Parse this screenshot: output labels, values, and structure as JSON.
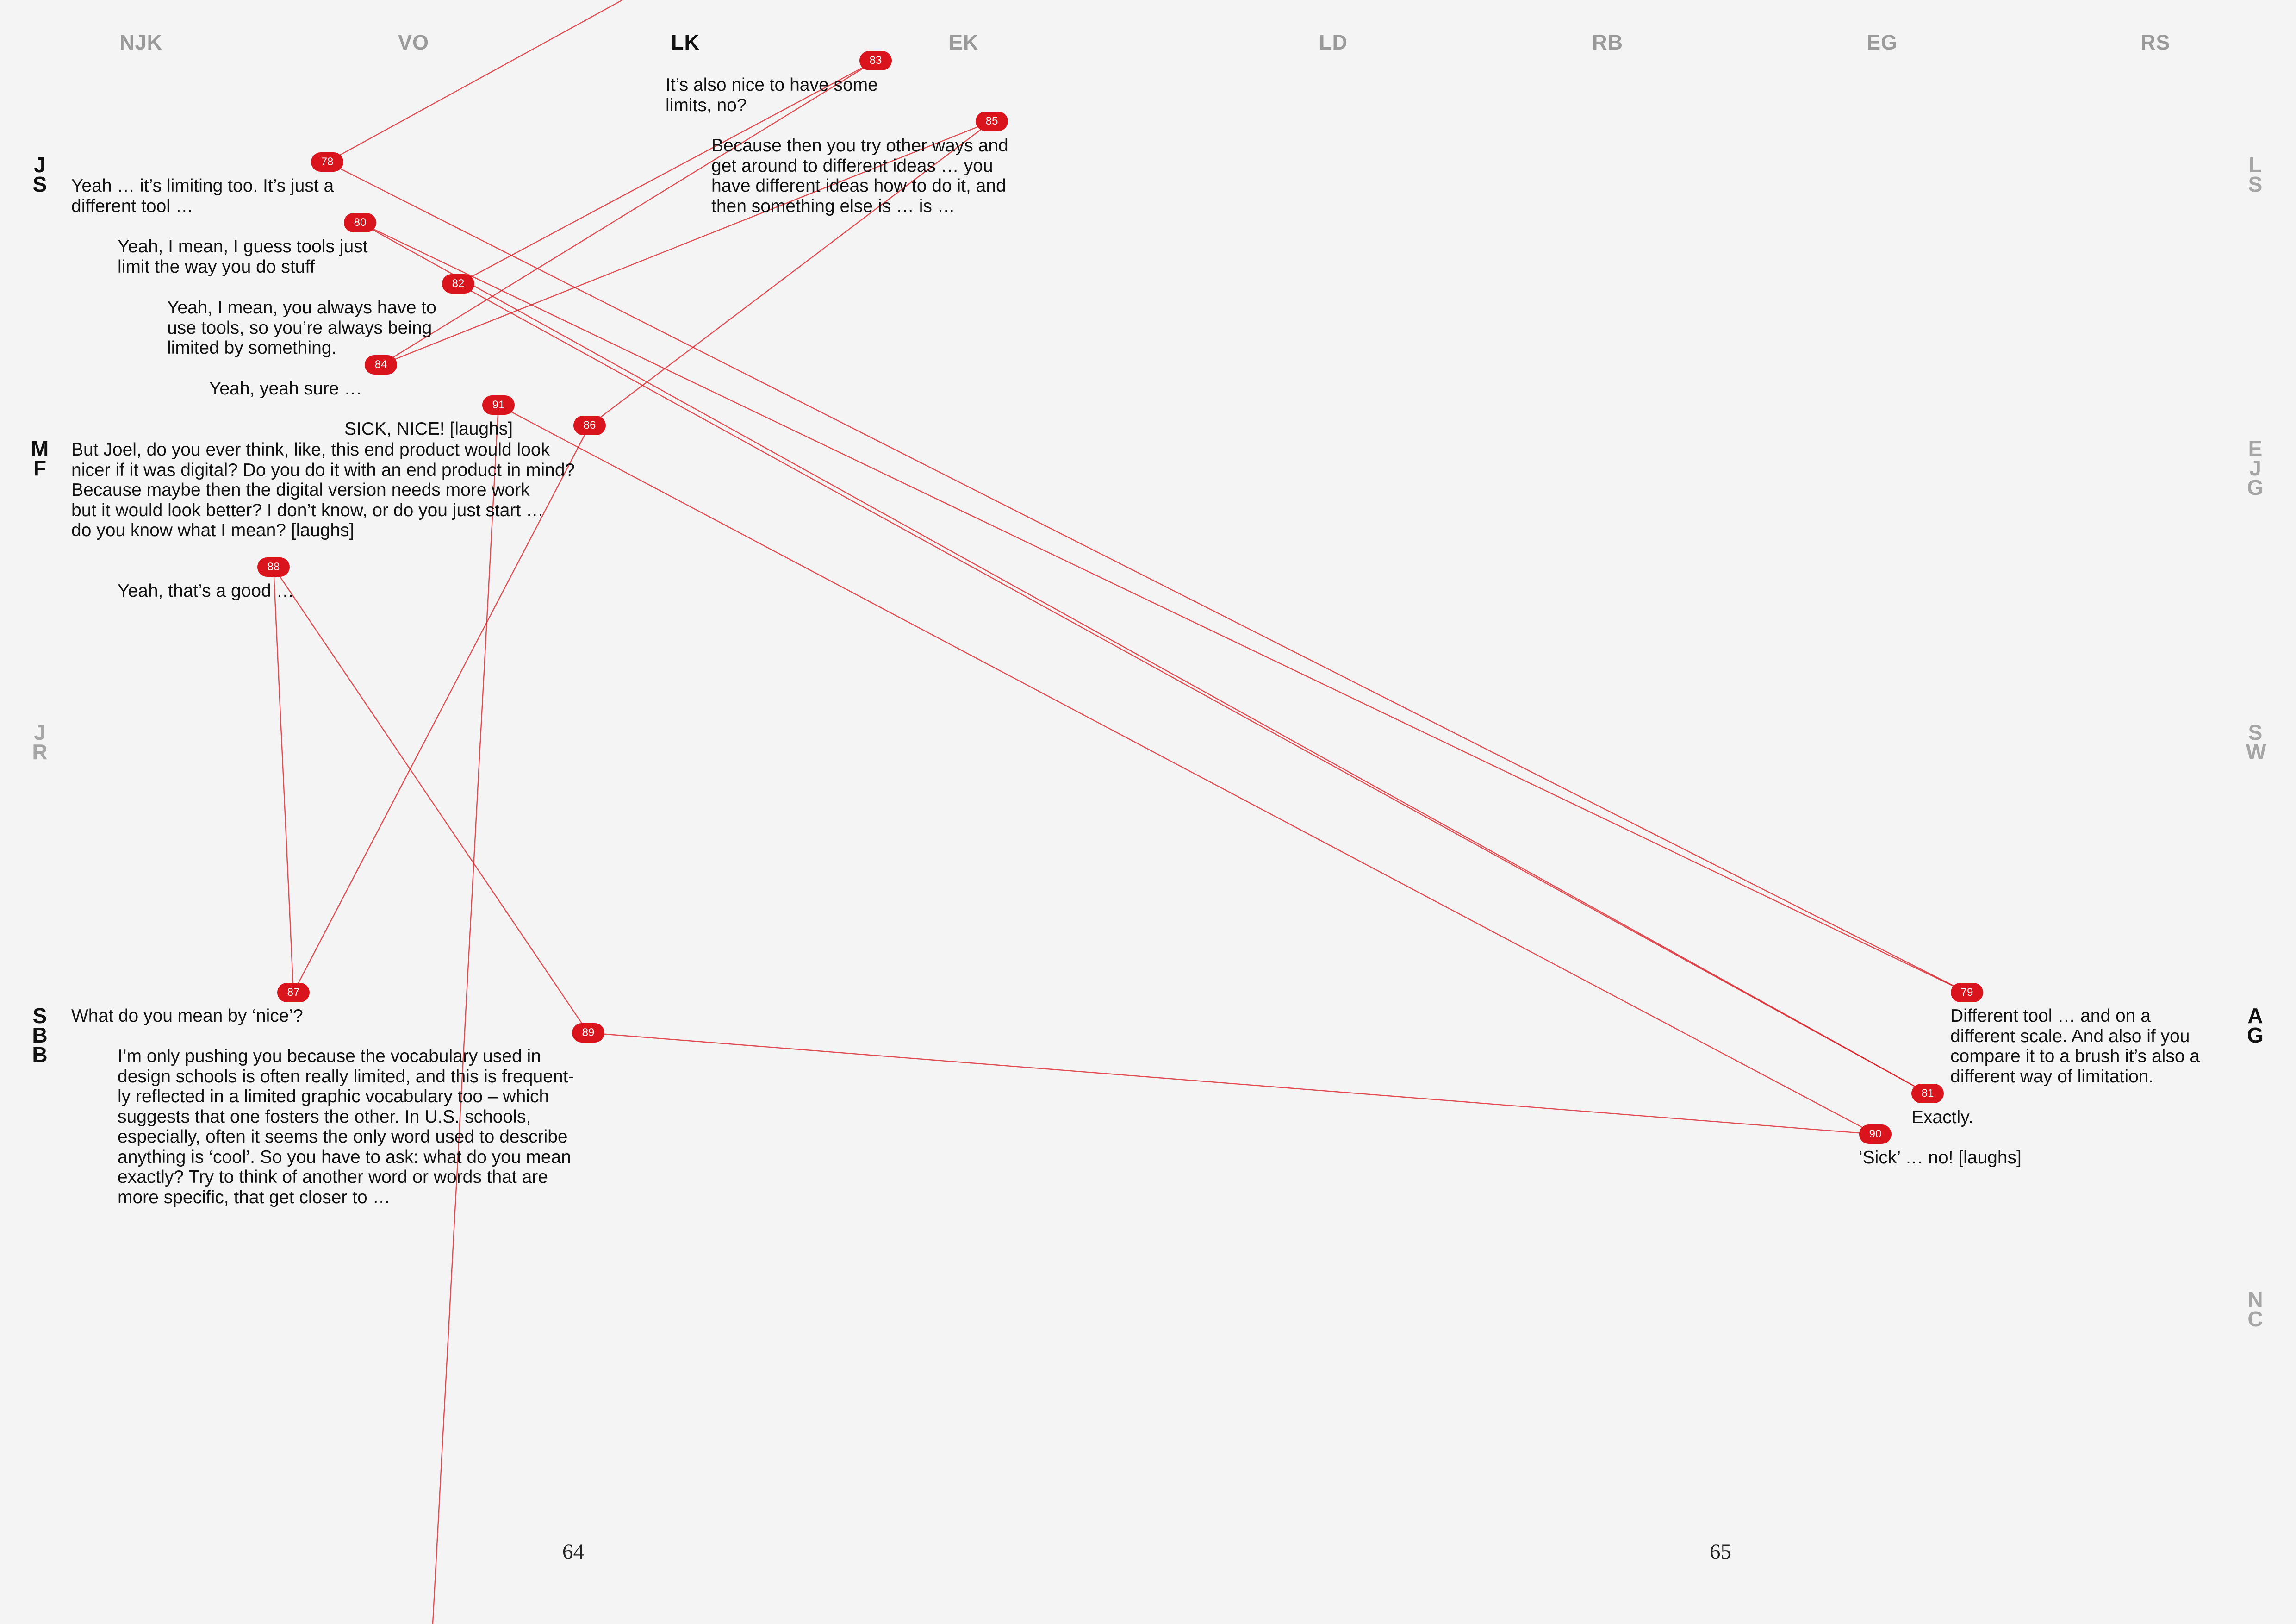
{
  "accent_color": "#d9141c",
  "columns": [
    {
      "id": "njk",
      "label": "NJK",
      "active": false
    },
    {
      "id": "vo",
      "label": "VO",
      "active": false
    },
    {
      "id": "lk",
      "label": "LK",
      "active": true
    },
    {
      "id": "ek",
      "label": "EK",
      "active": false
    },
    {
      "id": "ld",
      "label": "LD",
      "active": false
    },
    {
      "id": "rb",
      "label": "RB",
      "active": false
    },
    {
      "id": "eg",
      "label": "EG",
      "active": false
    },
    {
      "id": "rs",
      "label": "RS",
      "active": false
    }
  ],
  "rows_left": [
    {
      "id": "js",
      "letters": [
        "J",
        "S"
      ],
      "active": true
    },
    {
      "id": "mf",
      "letters": [
        "M",
        "F"
      ],
      "active": true
    },
    {
      "id": "jr",
      "letters": [
        "J",
        "R"
      ],
      "active": false
    },
    {
      "id": "sbb",
      "letters": [
        "S",
        "B",
        "B"
      ],
      "active": true
    }
  ],
  "rows_right": [
    {
      "id": "ls",
      "letters": [
        "L",
        "S"
      ],
      "active": false
    },
    {
      "id": "ejg",
      "letters": [
        "E",
        "J",
        "G"
      ],
      "active": false
    },
    {
      "id": "sw",
      "letters": [
        "S",
        "W"
      ],
      "active": false
    },
    {
      "id": "ag",
      "letters": [
        "A",
        "G"
      ],
      "active": true
    },
    {
      "id": "nc",
      "letters": [
        "N",
        "C"
      ],
      "active": false
    }
  ],
  "utterances": [
    {
      "n": "78",
      "text": "Yeah … it’s limiting too. It’s just a\ndifferent tool …"
    },
    {
      "n": "79",
      "text": "Different tool … and on a\ndifferent scale. And also if you\ncompare it to a brush it’s also a\ndifferent way of limitation."
    },
    {
      "n": "80",
      "text": "Yeah, I mean, I guess tools just\nlimit the way you do stuff"
    },
    {
      "n": "81",
      "text": "Exactly."
    },
    {
      "n": "82",
      "text": "Yeah, I mean, you always have to\nuse tools, so you’re always being\nlimited by something."
    },
    {
      "n": "83",
      "text": "It’s also nice to have some\nlimits, no?"
    },
    {
      "n": "84",
      "text": "Yeah, yeah sure …"
    },
    {
      "n": "85",
      "text": "Because then you try other ways and\nget around to different ideas … you\nhave different ideas how to do it, and\nthen something else is … is …"
    },
    {
      "n": "86",
      "text": "But Joel, do you ever think, like, this end product would look\nnicer if it was digital? Do you do it with an end product in mind?\nBecause maybe then the digital version needs more work\nbut it would look better? I don’t know, or do you just start …\ndo you know what I mean? [laughs]"
    },
    {
      "n": "87",
      "text": "What do you mean by ‘nice’?"
    },
    {
      "n": "88",
      "text": "Yeah, that’s a good …"
    },
    {
      "n": "89",
      "text": "I’m only pushing you because the vocabulary used in\ndesign schools is often really limited, and this is frequent-\nly reflected in a limited graphic vocabulary too – which\nsuggests that one fosters the other. In U.S. schools,\nespecially, often it seems the only word used to describe\nanything is ‘cool’. So you have to ask: what do you mean\nexactly? Try to think of another word or words that are\nmore specific, that get closer to …"
    },
    {
      "n": "90",
      "text": "‘Sick’ … no! [laughs]"
    },
    {
      "n": "91",
      "text": "SICK, NICE! [laughs]"
    }
  ],
  "folios": {
    "left": "64",
    "right": "65"
  }
}
